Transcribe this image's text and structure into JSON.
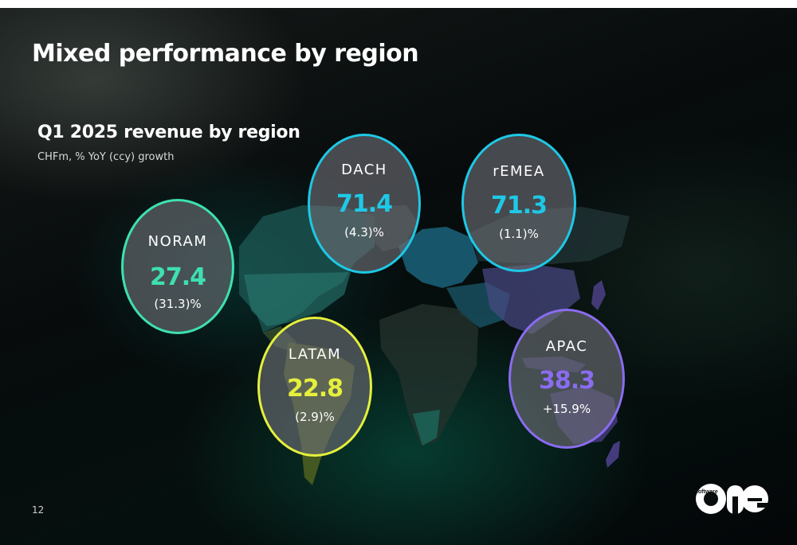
{
  "slide": {
    "title": "Mixed performance by region",
    "subtitle": "Q1 2025 revenue by region",
    "caption": "CHFm, % YoY (ccy) growth",
    "page_number": "12"
  },
  "regions": [
    {
      "key": "noram",
      "name": "NORAM",
      "value": "27.4",
      "growth": "(31.3)%",
      "color": "#3ee0b0"
    },
    {
      "key": "dach",
      "name": "DACH",
      "value": "71.4",
      "growth": "(4.3)%",
      "color": "#1ec8e6"
    },
    {
      "key": "remea",
      "name": "rEMEA",
      "value": "71.3",
      "growth": "(1.1)%",
      "color": "#1ec8e6"
    },
    {
      "key": "latam",
      "name": "LATAM",
      "value": "22.8",
      "growth": "(2.9)%",
      "color": "#e6f03c"
    },
    {
      "key": "apac",
      "name": "APAC",
      "value": "38.3",
      "growth": "+15.9%",
      "color": "#8a6cf0"
    }
  ],
  "logo": {
    "small_text": "software",
    "big_text": "one"
  }
}
